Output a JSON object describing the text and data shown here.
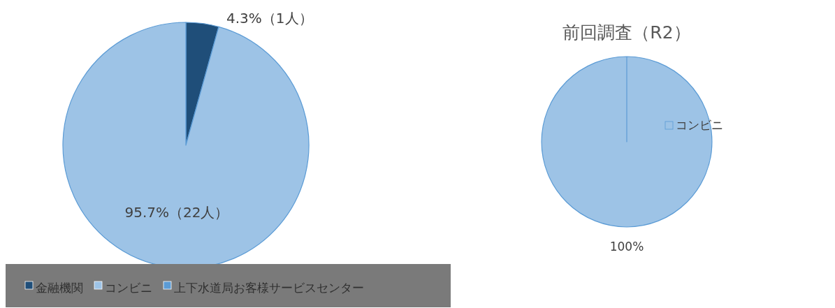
{
  "chart_data": [
    {
      "type": "pie",
      "categories": [
        "金融機関",
        "コンビニ",
        "上下水道局お客様サービスセンター"
      ],
      "values": [
        4.3,
        95.7,
        0
      ],
      "colors": [
        "#1f4e79",
        "#9dc3e6",
        "#5b9bd5"
      ],
      "value_labels": [
        "4.3%（1人）",
        "95.7%（22人）",
        null
      ],
      "legend": "bottom"
    },
    {
      "type": "pie",
      "title": "前回調査（R2）",
      "categories": [
        "コンビニ"
      ],
      "values": [
        100
      ],
      "colors": [
        "#9dc3e6"
      ],
      "value_labels": [
        "100%"
      ],
      "legend": "right"
    }
  ]
}
